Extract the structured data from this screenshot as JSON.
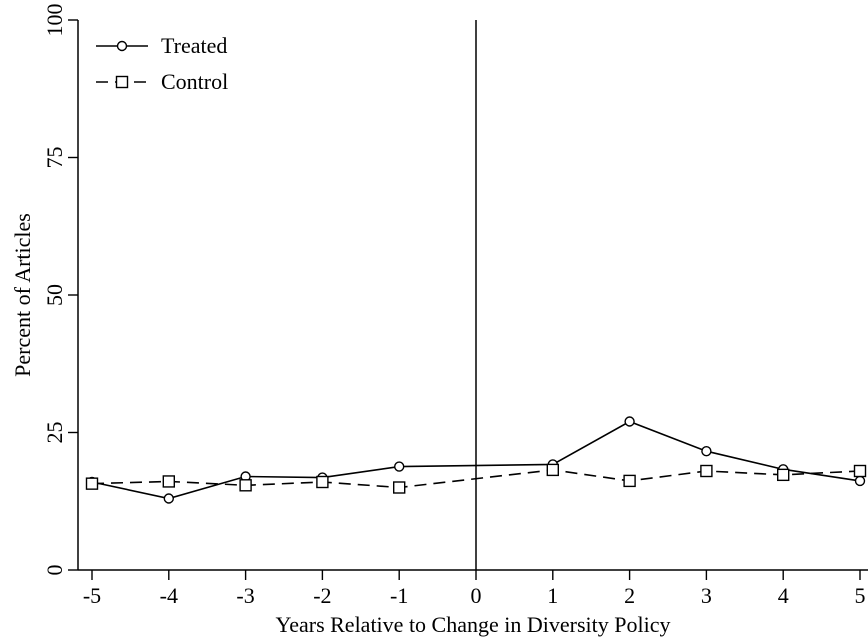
{
  "chart_data": {
    "type": "line",
    "title": "",
    "xlabel": "Years Relative to Change in Diversity Policy",
    "ylabel": "Percent of Articles",
    "x": [
      -5,
      -4,
      -3,
      -2,
      -1,
      0,
      1,
      2,
      3,
      4,
      5
    ],
    "x_tick_labels": [
      "-5",
      "-4",
      "-3",
      "-2",
      "-1",
      "0",
      "1",
      "2",
      "3",
      "4",
      "5"
    ],
    "y_ticks": [
      0,
      25,
      50,
      75,
      100
    ],
    "y_tick_labels": [
      "0",
      "25",
      "50",
      "75",
      "100"
    ],
    "xlim": [
      -5,
      5
    ],
    "ylim": [
      0,
      100
    ],
    "grid": false,
    "legend_position": "top-left",
    "vline": 0,
    "series": [
      {
        "name": "Treated",
        "marker": "circle",
        "line": "solid",
        "x": [
          -5,
          -4,
          -3,
          -2,
          -1,
          1,
          2,
          3,
          4,
          5
        ],
        "values": [
          16,
          13,
          17,
          16.8,
          18.8,
          19.2,
          27,
          21.6,
          18.3,
          16.2
        ]
      },
      {
        "name": "Control",
        "marker": "square",
        "line": "dashed",
        "x": [
          -5,
          -4,
          -3,
          -2,
          -1,
          1,
          2,
          3,
          4,
          5
        ],
        "values": [
          15.7,
          16.1,
          15.4,
          16,
          15,
          18.2,
          16.2,
          18,
          17.3,
          18
        ]
      }
    ]
  }
}
